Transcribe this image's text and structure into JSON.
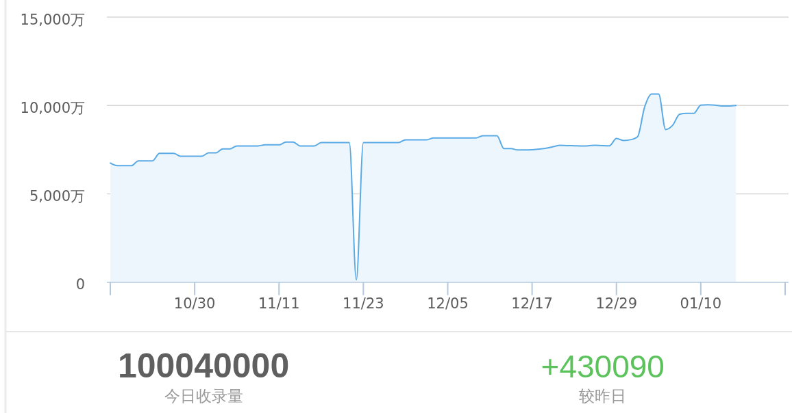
{
  "chart_data": [
    {
      "type": "area",
      "categories": [
        null,
        null,
        null,
        null,
        null,
        null,
        null,
        null,
        null,
        null,
        null,
        null,
        "10/30",
        null,
        null,
        null,
        null,
        null,
        null,
        null,
        null,
        null,
        null,
        null,
        "11/11",
        null,
        null,
        null,
        null,
        null,
        null,
        null,
        null,
        null,
        null,
        null,
        "11/23",
        null,
        null,
        null,
        null,
        null,
        null,
        null,
        null,
        null,
        null,
        null,
        "12/05",
        null,
        null,
        null,
        null,
        null,
        null,
        null,
        null,
        null,
        null,
        null,
        "12/17",
        null,
        null,
        null,
        null,
        null,
        null,
        null,
        null,
        null,
        null,
        null,
        "12/29",
        null,
        null,
        null,
        null,
        null,
        null,
        null,
        null,
        null,
        null,
        null,
        "01/10",
        null,
        null,
        null,
        null,
        null,
        null,
        null,
        null,
        null,
        null,
        null,
        null
      ],
      "series": [
        {
          "color": "#5aaae6",
          "values": [
            6740,
            6590,
            6590,
            6590,
            6870,
            6870,
            6870,
            7290,
            7290,
            7290,
            7130,
            7130,
            7130,
            7130,
            7320,
            7320,
            7540,
            7540,
            7710,
            7710,
            7710,
            7710,
            7770,
            7770,
            7770,
            7930,
            7930,
            7710,
            7710,
            7710,
            7900,
            7900,
            7900,
            7900,
            7900,
            130,
            7900,
            7900,
            7900,
            7900,
            7900,
            7900,
            8060,
            8060,
            8060,
            8060,
            8160,
            8160,
            8160,
            8160,
            8160,
            8160,
            8160,
            8290,
            8290,
            8290,
            7560,
            7560,
            7480,
            7480,
            7490,
            7530,
            7580,
            7670,
            7750,
            7730,
            7720,
            7710,
            7720,
            7750,
            7730,
            7720,
            8130,
            8020,
            8060,
            8230,
            9900,
            10650,
            10650,
            8640,
            8880,
            9510,
            9550,
            9550,
            10020,
            10040,
            10020,
            9970,
            9970,
            10000,
            null,
            null,
            null,
            null,
            null,
            null,
            null
          ]
        }
      ],
      "ylim": [
        0,
        15000
      ],
      "yticks": [
        0,
        {
          "value": 5000,
          "label": "5,000万"
        },
        {
          "value": 10000,
          "label": "10,000万"
        },
        {
          "value": 15000,
          "label": "15,000万"
        }
      ],
      "grid": "y"
    },
    {
      "type": "other",
      "annotations": [
        "100040000",
        "今日收录量",
        "+430090",
        "较昨日"
      ]
    }
  ]
}
